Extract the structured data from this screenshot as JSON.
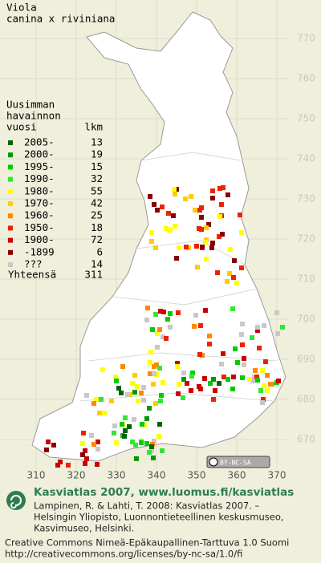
{
  "title": [
    "Viola",
    "canina x riviniana"
  ],
  "legend": {
    "heading": [
      "Uusimman",
      "havainnon",
      "vuosi"
    ],
    "count_heading": "lkm",
    "rows": [
      {
        "label": "2005-",
        "count": "13",
        "color": "#006400"
      },
      {
        "label": "2000-",
        "count": "19",
        "color": "#009a00"
      },
      {
        "label": "1995-",
        "count": "15",
        "color": "#00cc00"
      },
      {
        "label": "1990-",
        "count": "32",
        "color": "#33e633"
      },
      {
        "label": "1980-",
        "count": "55",
        "color": "#ffff00"
      },
      {
        "label": "1970-",
        "count": "42",
        "color": "#ffcc00"
      },
      {
        "label": "1960-",
        "count": "25",
        "color": "#ff8800"
      },
      {
        "label": "1950-",
        "count": "18",
        "color": "#ee2200"
      },
      {
        "label": "1900-",
        "count": "72",
        "color": "#cc0000"
      },
      {
        "label": "-1899",
        "count": "6",
        "color": "#880000"
      },
      {
        "label": "???",
        "count": "14",
        "color": "#c8c8c8"
      }
    ],
    "total": {
      "label": "Yhteensä",
      "count": "311"
    }
  },
  "grid": {
    "y_labels": [
      "770",
      "760",
      "750",
      "740",
      "730",
      "720",
      "710",
      "700",
      "690",
      "680",
      "670"
    ],
    "x_labels": [
      "310",
      "320",
      "330",
      "340",
      "350",
      "360",
      "370"
    ]
  },
  "license_badge": "BY-NC-SA",
  "footer": {
    "headline": "Kasviatlas 2007, www.luomus.fi/kasviatlas",
    "citation": [
      "Lampinen, R. & Lahti, T. 2008: Kasviatlas 2007. –",
      "Helsingin Yliopisto, Luonnontieteellinen keskusmuseo,",
      "Kasvimuseo, Helsinki."
    ],
    "license": [
      "Creative Commons Nimeä-Epäkaupallinen-Tarttuva 1.0 Suomi",
      "http://creativecommons.org/licenses/by-nc-sa/1.0/fi"
    ]
  }
}
